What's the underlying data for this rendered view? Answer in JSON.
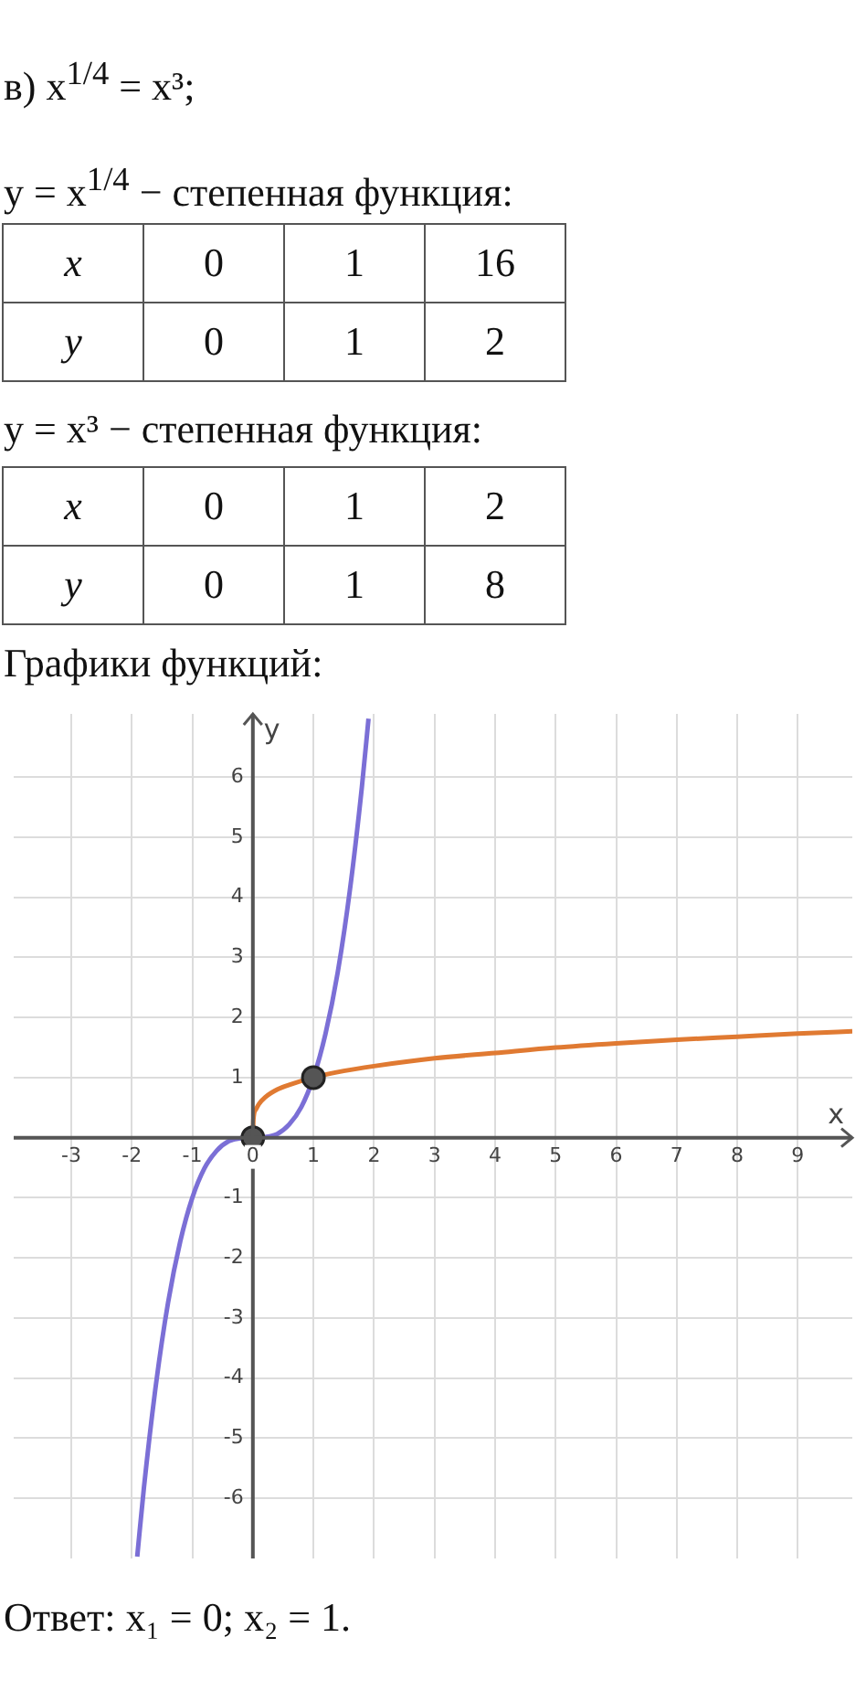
{
  "chart_data": {
    "type": "line",
    "xlabel": "x",
    "ylabel": "y",
    "xlim": [
      -3.95,
      9.9
    ],
    "ylim": [
      -7,
      7.05
    ],
    "xticks": [
      -3,
      -2,
      -1,
      0,
      1,
      2,
      3,
      4,
      5,
      6,
      7,
      8,
      9
    ],
    "yticks": [
      -6,
      -5,
      -4,
      -3,
      -2,
      -1,
      {
        "value": 0,
        "label": null
      },
      1,
      2,
      3,
      4,
      5,
      6
    ],
    "grid": true,
    "legend": false,
    "marker": "none",
    "line_style": "solid",
    "series": [
      {
        "color": "#e07a32",
        "x": [
          0,
          0.01,
          0.05,
          0.1,
          0.2,
          0.4,
          0.6,
          1,
          1.5,
          2,
          3,
          4,
          5,
          6,
          7,
          8,
          9,
          9.9
        ],
        "values": [
          0,
          0.32,
          0.47,
          0.56,
          0.67,
          0.8,
          0.88,
          1,
          1.11,
          1.19,
          1.32,
          1.41,
          1.5,
          1.57,
          1.63,
          1.68,
          1.73,
          1.77
        ]
      },
      {
        "color": "#7b6fd6",
        "x": [
          -1.91,
          -1.8,
          -1.6,
          -1.4,
          -1.2,
          -1,
          -0.8,
          -0.6,
          -0.4,
          -0.2,
          0,
          0.2,
          0.4,
          0.6,
          0.8,
          1,
          1.2,
          1.4,
          1.6,
          1.8,
          1.91
        ],
        "values": [
          -6.97,
          -5.83,
          -4.1,
          -2.74,
          -1.73,
          -1,
          -0.51,
          -0.22,
          -0.06,
          -0.01,
          0,
          0.01,
          0.06,
          0.22,
          0.51,
          1,
          1.73,
          2.74,
          4.1,
          5.83,
          6.97
        ]
      },
      {
        "type": "scatter",
        "marker": "circle",
        "color": "#555555",
        "x": [
          0,
          1
        ],
        "values": [
          0,
          1
        ]
      }
    ],
    "annotations": [
      "в) x$^{1/4}$ = x³;",
      "y = x$^{1/4}$ − степенная функция:",
      "x",
      "0",
      "1",
      "16",
      "y",
      "0",
      "1",
      "2",
      "y = x³ − степенная функция:",
      "x",
      "0",
      "1",
      "2",
      "y",
      "0",
      "1",
      "8",
      "Графики функций:",
      "Ответ:  x₁ = 0; x₂ = 1."
    ]
  }
}
